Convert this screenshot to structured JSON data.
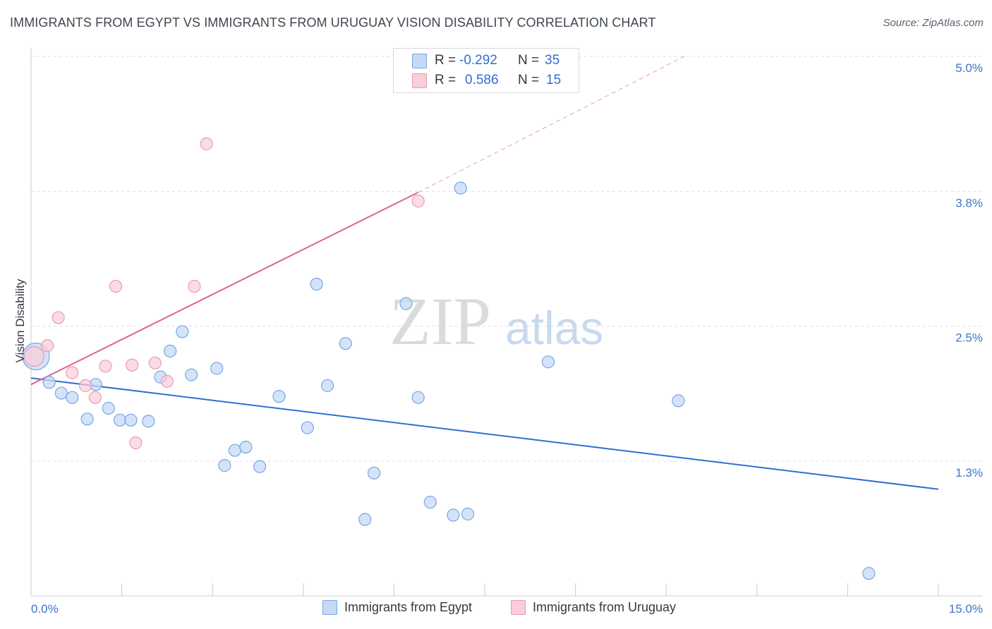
{
  "title": "IMMIGRANTS FROM EGYPT VS IMMIGRANTS FROM URUGUAY VISION DISABILITY CORRELATION CHART",
  "source": "Source: ZipAtlas.com",
  "watermark": {
    "zip": "ZIP",
    "atlas": "atlas"
  },
  "legend_top": {
    "rows": [
      {
        "r_label": "R =",
        "r_value": "-0.292",
        "n_label": "N =",
        "n_value": "35"
      },
      {
        "r_label": "R =",
        "r_value": "0.586",
        "n_label": "N =",
        "n_value": "15"
      }
    ]
  },
  "legend_bottom": {
    "egypt": "Immigrants from Egypt",
    "uruguay": "Immigrants from Uruguay"
  },
  "colors": {
    "egypt_fill": "#c5d9f5",
    "egypt_stroke": "#7aa6e0",
    "egypt_line": "#2f6fd0",
    "uruguay_fill": "#f9cdd9",
    "uruguay_stroke": "#e99ab2",
    "uruguay_line": "#e0648c",
    "grid": "#dcdfe4",
    "tick_label": "#3d74c8"
  },
  "chart_data": {
    "type": "scatter",
    "title": "IMMIGRANTS FROM EGYPT VS IMMIGRANTS FROM URUGUAY VISION DISABILITY CORRELATION CHART",
    "xlabel": "",
    "ylabel": "Vision Disability",
    "xlim": [
      0,
      15
    ],
    "ylim": [
      0,
      5.2
    ],
    "x_tick_labels": {
      "left": "0.0%",
      "right": "15.0%"
    },
    "y_ticks": [
      {
        "value": 1.25,
        "label": "1.3%"
      },
      {
        "value": 2.5,
        "label": "2.5%"
      },
      {
        "value": 3.75,
        "label": "3.8%"
      },
      {
        "value": 5.0,
        "label": "5.0%"
      }
    ],
    "series": [
      {
        "name": "Immigrants from Egypt",
        "r": -0.292,
        "n": 35,
        "trend": {
          "x0": 0,
          "y0": 2.02,
          "x1": 15,
          "y1": 0.99
        },
        "points": [
          {
            "x": 0.08,
            "y": 2.22,
            "size": "large"
          },
          {
            "x": 0.3,
            "y": 1.98
          },
          {
            "x": 0.5,
            "y": 1.88
          },
          {
            "x": 0.68,
            "y": 1.84
          },
          {
            "x": 0.93,
            "y": 1.64
          },
          {
            "x": 1.07,
            "y": 1.96
          },
          {
            "x": 1.28,
            "y": 1.74
          },
          {
            "x": 1.47,
            "y": 1.63
          },
          {
            "x": 1.65,
            "y": 1.63
          },
          {
            "x": 1.94,
            "y": 1.62
          },
          {
            "x": 2.14,
            "y": 2.03
          },
          {
            "x": 2.3,
            "y": 2.27
          },
          {
            "x": 2.5,
            "y": 2.45
          },
          {
            "x": 2.65,
            "y": 2.05
          },
          {
            "x": 3.07,
            "y": 2.11
          },
          {
            "x": 3.2,
            "y": 1.21
          },
          {
            "x": 3.37,
            "y": 1.35
          },
          {
            "x": 3.55,
            "y": 1.38
          },
          {
            "x": 3.78,
            "y": 1.2
          },
          {
            "x": 4.1,
            "y": 1.85
          },
          {
            "x": 4.57,
            "y": 1.56
          },
          {
            "x": 4.72,
            "y": 2.89
          },
          {
            "x": 4.9,
            "y": 1.95
          },
          {
            "x": 5.2,
            "y": 2.34
          },
          {
            "x": 5.52,
            "y": 0.71
          },
          {
            "x": 5.67,
            "y": 1.14
          },
          {
            "x": 6.2,
            "y": 2.71
          },
          {
            "x": 6.4,
            "y": 1.84
          },
          {
            "x": 6.6,
            "y": 0.87
          },
          {
            "x": 6.98,
            "y": 0.75
          },
          {
            "x": 7.22,
            "y": 0.76
          },
          {
            "x": 7.1,
            "y": 3.78
          },
          {
            "x": 8.55,
            "y": 2.17
          },
          {
            "x": 10.7,
            "y": 1.81
          },
          {
            "x": 13.85,
            "y": 0.21
          }
        ]
      },
      {
        "name": "Immigrants from Uruguay",
        "r": 0.586,
        "n": 15,
        "trend": {
          "x0": 0,
          "y0": 1.96,
          "x1": 6.4,
          "y1": 3.74,
          "dashed_to": {
            "x": 10.8,
            "y": 5.0
          }
        },
        "points": [
          {
            "x": 0.05,
            "y": 2.22,
            "size": "large"
          },
          {
            "x": 0.27,
            "y": 2.32
          },
          {
            "x": 0.45,
            "y": 2.58
          },
          {
            "x": 0.68,
            "y": 2.07
          },
          {
            "x": 0.9,
            "y": 1.95
          },
          {
            "x": 1.06,
            "y": 1.84
          },
          {
            "x": 1.23,
            "y": 2.13
          },
          {
            "x": 1.4,
            "y": 2.87
          },
          {
            "x": 1.67,
            "y": 2.14
          },
          {
            "x": 1.73,
            "y": 1.42
          },
          {
            "x": 2.05,
            "y": 2.16
          },
          {
            "x": 2.25,
            "y": 1.99
          },
          {
            "x": 2.7,
            "y": 2.87
          },
          {
            "x": 2.9,
            "y": 4.19
          },
          {
            "x": 6.4,
            "y": 3.66
          }
        ]
      }
    ]
  }
}
